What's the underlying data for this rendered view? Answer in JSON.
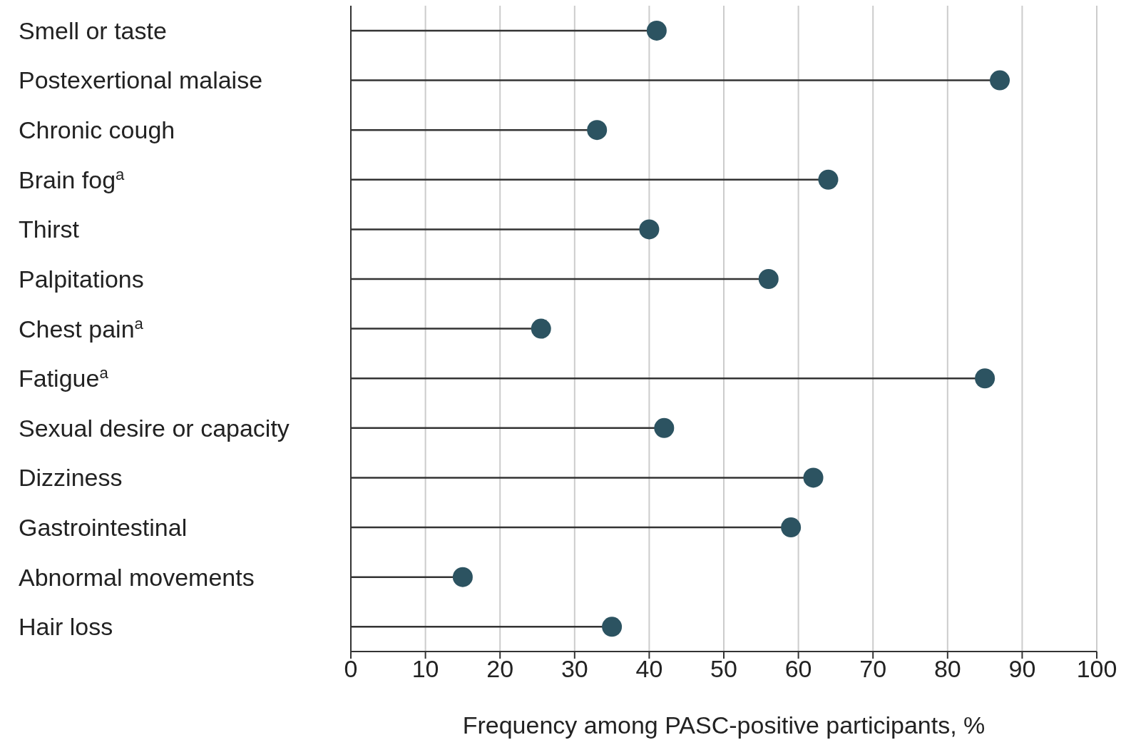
{
  "chart_data": {
    "type": "lollipop",
    "orientation": "horizontal",
    "xlabel": "Frequency among PASC-positive participants, %",
    "categories": [
      "Smell or taste",
      "Postexertional malaise",
      "Chronic cough",
      "Brain fog$^{a}$",
      "Thirst",
      "Palpitations",
      "Chest pain$^{a}$",
      "Fatigue$^{a}$",
      "Sexual desire or capacity",
      "Dizziness",
      "Gastrointestinal",
      "Abnormal movements",
      "Hair loss"
    ],
    "values": [
      41,
      87,
      33,
      64,
      40,
      56,
      25.5,
      85,
      42,
      62,
      59,
      15,
      35
    ],
    "color": "#2c5361",
    "xlim": [
      0,
      100
    ],
    "xticks": [
      0,
      10,
      20,
      30,
      40,
      50,
      60,
      70,
      80,
      90,
      100
    ],
    "grid": "x",
    "marker": "circle"
  }
}
